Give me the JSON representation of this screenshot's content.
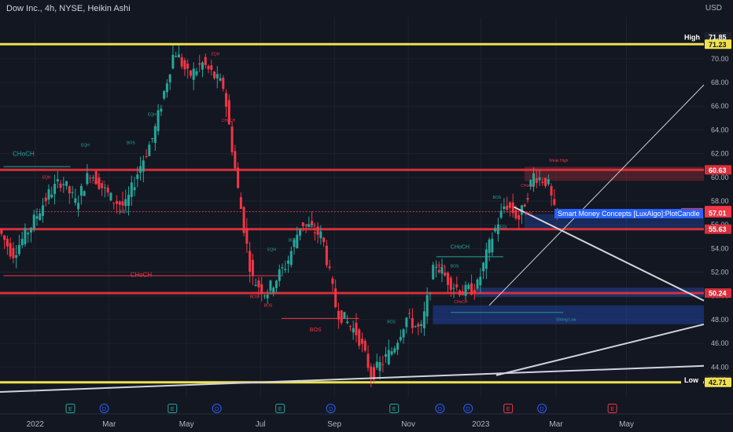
{
  "header": {
    "title": "Dow Inc., 4h, NYSE, Heikin Ashi",
    "currency": "USD"
  },
  "colors": {
    "background": "#131722",
    "bull": "#26a69a",
    "bear": "#f23645",
    "yellow_level": "#f0e050",
    "red_level": "#d6303a",
    "white_line": "#d1d4dc",
    "ob_blue": "#2962ff"
  },
  "chart_data": {
    "type": "candlestick",
    "style": "Heikin Ashi",
    "symbol": "DOW",
    "interval": "4h",
    "x_axis_labels": [
      "2022",
      "Mar",
      "May",
      "Jul",
      "Sep",
      "Nov",
      "2023",
      "Mar",
      "May"
    ],
    "y_axis": {
      "ylim": [
        41.5,
        73.5
      ],
      "ticks": [
        44.0,
        46.0,
        48.0,
        50.0,
        52.0,
        54.0,
        56.0,
        58.0,
        60.0,
        62.0,
        64.0,
        66.0,
        68.0,
        70.0
      ]
    },
    "price_path": [
      {
        "t": 0,
        "p": 55.6
      },
      {
        "t": 0.02,
        "p": 53.5
      },
      {
        "t": 0.045,
        "p": 55.8
      },
      {
        "t": 0.07,
        "p": 58.5
      },
      {
        "t": 0.09,
        "p": 59.8
      },
      {
        "t": 0.11,
        "p": 57.8
      },
      {
        "t": 0.13,
        "p": 60.5
      },
      {
        "t": 0.16,
        "p": 58.2
      },
      {
        "t": 0.18,
        "p": 57.5
      },
      {
        "t": 0.2,
        "p": 60.8
      },
      {
        "t": 0.22,
        "p": 63.5
      },
      {
        "t": 0.25,
        "p": 70.8
      },
      {
        "t": 0.27,
        "p": 68.5
      },
      {
        "t": 0.29,
        "p": 69.6
      },
      {
        "t": 0.32,
        "p": 67.6
      },
      {
        "t": 0.34,
        "p": 59.0
      },
      {
        "t": 0.36,
        "p": 51.5
      },
      {
        "t": 0.38,
        "p": 50.2
      },
      {
        "t": 0.41,
        "p": 52.8
      },
      {
        "t": 0.43,
        "p": 56.2
      },
      {
        "t": 0.46,
        "p": 55.0
      },
      {
        "t": 0.48,
        "p": 48.8
      },
      {
        "t": 0.51,
        "p": 46.8
      },
      {
        "t": 0.53,
        "p": 43.3
      },
      {
        "t": 0.56,
        "p": 45.5
      },
      {
        "t": 0.58,
        "p": 48.2
      },
      {
        "t": 0.6,
        "p": 47.0
      },
      {
        "t": 0.62,
        "p": 52.8
      },
      {
        "t": 0.64,
        "p": 51.2
      },
      {
        "t": 0.66,
        "p": 50.3
      },
      {
        "t": 0.68,
        "p": 50.8
      },
      {
        "t": 0.7,
        "p": 54.8
      },
      {
        "t": 0.72,
        "p": 57.8
      },
      {
        "t": 0.74,
        "p": 56.5
      },
      {
        "t": 0.76,
        "p": 60.2
      },
      {
        "t": 0.78,
        "p": 59.6
      },
      {
        "t": 0.79,
        "p": 57.0
      }
    ],
    "horizontal_levels": [
      {
        "price": 71.23,
        "kind": "yellow"
      },
      {
        "price": 60.63,
        "kind": "red"
      },
      {
        "price": 55.63,
        "kind": "red"
      },
      {
        "price": 50.24,
        "kind": "red"
      },
      {
        "price": 42.71,
        "kind": "yellow"
      }
    ],
    "price_badges": [
      {
        "label": "High",
        "value": "71.85",
        "price": 71.85,
        "bg": "#1e222d",
        "fg": "#ffffff",
        "label_bg": "#131722"
      },
      {
        "value": "71.23",
        "price": 71.23,
        "bg": "#f0e050",
        "fg": "#131722"
      },
      {
        "value": "60.63",
        "price": 60.63,
        "bg": "#d6303a",
        "fg": "#ffffff"
      },
      {
        "value": "57.19",
        "price": 57.19,
        "bg": "#f23645",
        "fg": "#ffffff"
      },
      {
        "label": "DOW",
        "value": "57.01",
        "price": 57.01,
        "bg": "#f23645",
        "fg": "#ffffff",
        "label_bg": "#f23645"
      },
      {
        "value": "55.63",
        "price": 55.63,
        "bg": "#d6303a",
        "fg": "#ffffff"
      },
      {
        "value": "50.24",
        "price": 50.24,
        "bg": "#d6303a",
        "fg": "#ffffff"
      },
      {
        "label": "Low",
        "value": "42.92",
        "price": 42.92,
        "bg": "#1e222d",
        "fg": "#ffffff",
        "label_bg": "#131722"
      },
      {
        "value": "42.71",
        "price": 42.71,
        "bg": "#f0e050",
        "fg": "#131722"
      }
    ],
    "annotations": [
      {
        "text": "CHoCH",
        "t": 0.018,
        "p": 61.8,
        "color": "#26a69a",
        "size": 8
      },
      {
        "text": "CHoCH",
        "t": 0.185,
        "p": 51.6,
        "color": "#f23645",
        "size": 8
      },
      {
        "text": "BOS",
        "t": 0.44,
        "p": 47.0,
        "color": "#f23645",
        "size": 7
      },
      {
        "text": "CHoCH",
        "t": 0.64,
        "p": 54.0,
        "color": "#26a69a",
        "size": 7
      },
      {
        "text": "EQH",
        "t": 0.3,
        "p": 70.3,
        "color": "#f23645",
        "size": 5
      },
      {
        "text": "EQH",
        "t": 0.21,
        "p": 65.2,
        "color": "#26a69a",
        "size": 5
      },
      {
        "text": "EQH",
        "t": 0.115,
        "p": 62.6,
        "color": "#26a69a",
        "size": 5
      },
      {
        "text": "CHoCH",
        "t": 0.315,
        "p": 64.7,
        "color": "#f23645",
        "size": 5
      },
      {
        "text": "BOS",
        "t": 0.18,
        "p": 62.8,
        "color": "#26a69a",
        "size": 5
      },
      {
        "text": "EQL",
        "t": 0.17,
        "p": 57.0,
        "color": "#26a69a",
        "size": 5
      },
      {
        "text": "EQL",
        "t": 0.71,
        "p": 55.7,
        "color": "#26a69a",
        "size": 5
      },
      {
        "text": "BOS",
        "t": 0.41,
        "p": 54.6,
        "color": "#26a69a",
        "size": 5
      },
      {
        "text": "BOS",
        "t": 0.435,
        "p": 55.8,
        "color": "#26a69a",
        "size": 5
      },
      {
        "text": "EQH",
        "t": 0.38,
        "p": 53.8,
        "color": "#26a69a",
        "size": 5
      },
      {
        "text": "BOS",
        "t": 0.355,
        "p": 49.8,
        "color": "#f23645",
        "size": 5
      },
      {
        "text": "BOS",
        "t": 0.375,
        "p": 49.1,
        "color": "#f23645",
        "size": 5
      },
      {
        "text": "BOS",
        "t": 0.55,
        "p": 47.7,
        "color": "#26a69a",
        "size": 5
      },
      {
        "text": "EQH",
        "t": 0.62,
        "p": 52.4,
        "color": "#f23645",
        "size": 5
      },
      {
        "text": "BOS",
        "t": 0.64,
        "p": 52.4,
        "color": "#26a69a",
        "size": 5
      },
      {
        "text": "BOS",
        "t": 0.745,
        "p": 56.8,
        "color": "#f23645",
        "size": 5
      },
      {
        "text": "BOS",
        "t": 0.7,
        "p": 58.2,
        "color": "#26a69a",
        "size": 5
      },
      {
        "text": "CHoCH",
        "t": 0.74,
        "p": 59.2,
        "color": "#f23645",
        "size": 5
      },
      {
        "text": "Weak High",
        "t": 0.78,
        "p": 61.3,
        "color": "#f23645",
        "size": 5
      },
      {
        "text": "Strong Low",
        "t": 0.79,
        "p": 47.9,
        "color": "#26a69a",
        "size": 5
      },
      {
        "text": "CHoCH",
        "t": 0.645,
        "p": 49.4,
        "color": "#f23645",
        "size": 5
      },
      {
        "text": "EQH",
        "t": 0.06,
        "p": 59.9,
        "color": "#f23645",
        "size": 5
      },
      {
        "text": "CHoCH",
        "t": 0.13,
        "p": 59.5,
        "color": "#f23645",
        "size": 5
      }
    ],
    "tooltip": "Smart Money Concepts [LuxAlgo]:PlotCandle",
    "events": [
      {
        "kind": "E",
        "t": 0.1,
        "label": "E"
      },
      {
        "kind": "D",
        "t": 0.148,
        "label": "D"
      },
      {
        "kind": "E",
        "t": 0.245,
        "label": "E"
      },
      {
        "kind": "D",
        "t": 0.308,
        "label": "D"
      },
      {
        "kind": "E",
        "t": 0.398,
        "label": "E"
      },
      {
        "kind": "D",
        "t": 0.47,
        "label": "D"
      },
      {
        "kind": "E",
        "t": 0.56,
        "label": "E"
      },
      {
        "kind": "D",
        "t": 0.625,
        "label": "D"
      },
      {
        "kind": "D",
        "t": 0.665,
        "label": "D"
      },
      {
        "kind": "ER",
        "t": 0.722,
        "label": "E"
      },
      {
        "kind": "D",
        "t": 0.77,
        "label": "D"
      },
      {
        "kind": "ER",
        "t": 0.87,
        "label": "E"
      }
    ]
  }
}
